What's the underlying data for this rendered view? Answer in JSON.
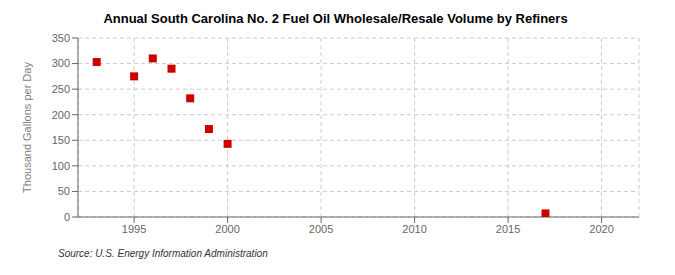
{
  "chart_data": {
    "type": "scatter",
    "title": "Annual South Carolina No. 2 Fuel Oil Wholesale/Resale Volume by Refiners",
    "ylabel": "Thousand Gallons per Day",
    "annotations": [
      "Source: U.S. Energy Information Administration"
    ],
    "x": [
      1993,
      1995,
      1996,
      1997,
      1998,
      1999,
      2000,
      2017
    ],
    "values": [
      303,
      275,
      310,
      290,
      232,
      172,
      143,
      7
    ],
    "color": "#cc0000",
    "marker": "square",
    "xlim": [
      1992,
      2022
    ],
    "xticks": [
      1995,
      2000,
      2005,
      2010,
      2015,
      2020
    ],
    "ylim": [
      0,
      350
    ],
    "yticks": [
      0,
      50,
      100,
      150,
      200,
      250,
      300,
      350
    ],
    "grid": true
  }
}
